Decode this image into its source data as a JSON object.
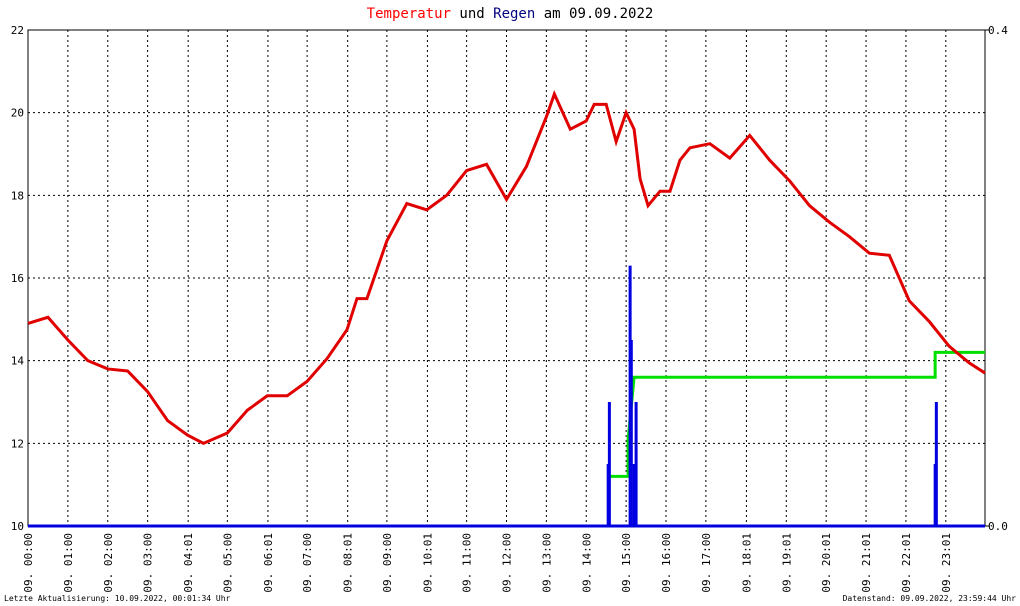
{
  "chart_data": {
    "type": "line",
    "title_parts": [
      "Temperatur",
      "und",
      "Regen",
      "am 09.09.2022"
    ],
    "title_colors": [
      "#ff0000",
      "#000000",
      "#000080",
      "#000000"
    ],
    "footer_left": "Letzte Aktualisierung: 10.09.2022, 00:01:34 Uhr",
    "footer_right": "Datenstand: 09.09.2022, 23:59:44 Uhr",
    "xlim": [
      0,
      24
    ],
    "xticks": [
      {
        "value": 0,
        "label": "09. 00:00"
      },
      {
        "value": 1,
        "label": "09. 01:00"
      },
      {
        "value": 2,
        "label": "09. 02:00"
      },
      {
        "value": 3,
        "label": "09. 03:00"
      },
      {
        "value": 4.017,
        "label": "09. 04:01"
      },
      {
        "value": 5,
        "label": "09. 05:00"
      },
      {
        "value": 6.017,
        "label": "09. 06:01"
      },
      {
        "value": 7,
        "label": "09. 07:00"
      },
      {
        "value": 8.017,
        "label": "09. 08:01"
      },
      {
        "value": 9,
        "label": "09. 09:00"
      },
      {
        "value": 10.017,
        "label": "09. 10:01"
      },
      {
        "value": 11,
        "label": "09. 11:00"
      },
      {
        "value": 12,
        "label": "09. 12:00"
      },
      {
        "value": 13,
        "label": "09. 13:00"
      },
      {
        "value": 14,
        "label": "09. 14:00"
      },
      {
        "value": 15,
        "label": "09. 15:00"
      },
      {
        "value": 16,
        "label": "09. 16:00"
      },
      {
        "value": 17,
        "label": "09. 17:00"
      },
      {
        "value": 18.017,
        "label": "09. 18:01"
      },
      {
        "value": 19.017,
        "label": "09. 19:01"
      },
      {
        "value": 20.017,
        "label": "09. 20:01"
      },
      {
        "value": 21.017,
        "label": "09. 21:01"
      },
      {
        "value": 22.017,
        "label": "09. 22:01"
      },
      {
        "value": 23.017,
        "label": "09. 23:01"
      }
    ],
    "ylim": [
      10,
      22
    ],
    "yticks": [
      10,
      12,
      14,
      16,
      18,
      20,
      22
    ],
    "y2lim": [
      0,
      0.4
    ],
    "y2ticks": [
      {
        "value": 0,
        "label": "0.0"
      },
      {
        "value": 0.4,
        "label": "0.4"
      }
    ],
    "grid": true,
    "series": [
      {
        "type": "line",
        "color": "#e00000",
        "x": [
          0,
          0.5,
          1,
          1.5,
          2,
          2.5,
          3,
          3.5,
          4,
          4.4,
          5,
          5.5,
          6,
          6.5,
          7,
          7.5,
          8,
          8.25,
          8.5,
          9,
          9.5,
          10,
          10.5,
          11,
          11.5,
          12,
          12.5,
          13,
          13.2,
          13.6,
          14,
          14.2,
          14.5,
          14.75,
          15,
          15.2,
          15.35,
          15.55,
          15.85,
          16.1,
          16.35,
          16.6,
          17.1,
          17.6,
          18.1,
          18.6,
          19.1,
          19.6,
          20.1,
          20.6,
          21.1,
          21.6,
          22.1,
          22.6,
          23.1,
          23.6,
          24
        ],
        "values": [
          14.9,
          15.05,
          14.5,
          14.0,
          13.8,
          13.75,
          13.25,
          12.55,
          12.2,
          12.0,
          12.25,
          12.8,
          13.15,
          13.15,
          13.5,
          14.05,
          14.75,
          15.5,
          15.5,
          16.9,
          17.8,
          17.65,
          18.0,
          18.6,
          18.75,
          17.9,
          18.7,
          19.9,
          20.45,
          19.6,
          19.8,
          20.2,
          20.2,
          19.3,
          20.0,
          19.6,
          18.4,
          17.75,
          18.1,
          18.1,
          18.85,
          19.15,
          19.25,
          18.9,
          19.45,
          18.85,
          18.35,
          17.75,
          17.35,
          17.0,
          16.6,
          16.55,
          15.45,
          14.95,
          14.35,
          13.95,
          13.7
        ]
      },
      {
        "type": "line",
        "axis": "y2",
        "color": "#00e000",
        "x": [
          14.58,
          15.05,
          15.05,
          15.2,
          22.75,
          22.75,
          24
        ],
        "values": [
          0.04,
          0.04,
          0.07,
          0.12,
          0.12,
          0.14,
          0.14
        ]
      },
      {
        "type": "bar",
        "axis": "y2",
        "color": "#0000e0",
        "x": [
          14.55,
          14.58,
          15.1,
          15.13,
          15.2,
          15.25,
          22.75,
          22.78
        ],
        "values": [
          0.05,
          0.1,
          0.21,
          0.15,
          0.05,
          0.1,
          0.05,
          0.1
        ]
      }
    ]
  }
}
